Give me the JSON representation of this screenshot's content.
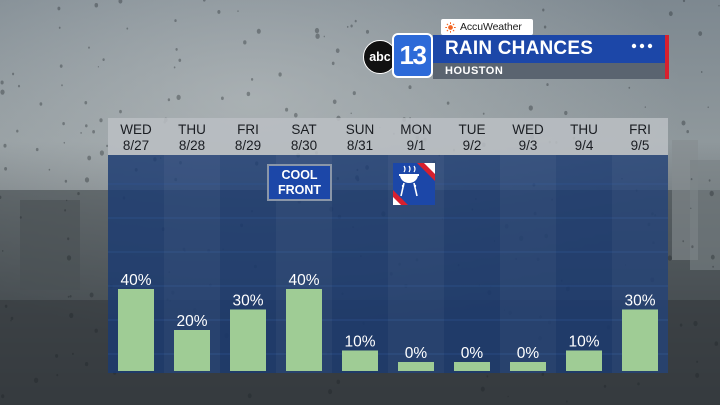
{
  "brand": {
    "accuweather_label": "AccuWeather",
    "network_logo": "abc",
    "channel_logo": "13"
  },
  "header": {
    "title": "RAIN CHANCES",
    "location": "HOUSTON",
    "menu_icon": "dots-icon"
  },
  "annotations": {
    "cool_front_line1": "COOL",
    "cool_front_line2": "FRONT",
    "labor_day_icon": "grill-icon"
  },
  "colors": {
    "bar": "#9fcc95",
    "title_bar": "#1c47a8",
    "accent_red": "#d7202e",
    "chart_panel": "#1b3a72"
  },
  "chart_data": {
    "type": "bar",
    "title": "RAIN CHANCES",
    "subtitle": "HOUSTON",
    "categories": [
      {
        "day": "WED",
        "date": "8/27"
      },
      {
        "day": "THU",
        "date": "8/28"
      },
      {
        "day": "FRI",
        "date": "8/29"
      },
      {
        "day": "SAT",
        "date": "8/30"
      },
      {
        "day": "SUN",
        "date": "8/31"
      },
      {
        "day": "MON",
        "date": "9/1"
      },
      {
        "day": "TUE",
        "date": "9/2"
      },
      {
        "day": "WED",
        "date": "9/3"
      },
      {
        "day": "THU",
        "date": "9/4"
      },
      {
        "day": "FRI",
        "date": "9/5"
      }
    ],
    "values": [
      40,
      20,
      30,
      40,
      10,
      0,
      0,
      0,
      10,
      30
    ],
    "value_labels": [
      "40%",
      "20%",
      "30%",
      "40%",
      "10%",
      "0%",
      "0%",
      "0%",
      "10%",
      "30%"
    ],
    "ylim": [
      0,
      100
    ],
    "grid": true,
    "legend": "none"
  }
}
